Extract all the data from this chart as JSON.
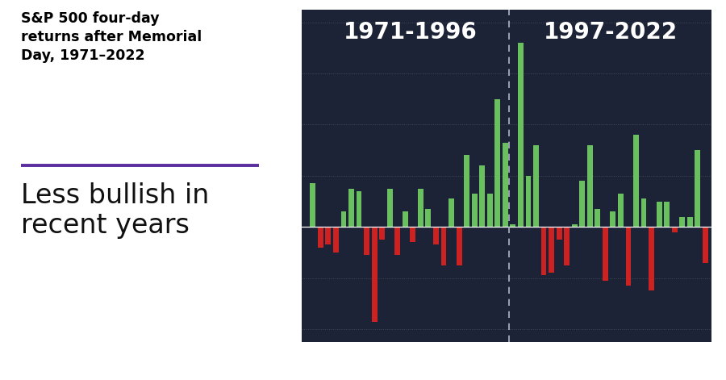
{
  "years": [
    1971,
    1972,
    1973,
    1974,
    1975,
    1976,
    1977,
    1978,
    1979,
    1980,
    1981,
    1982,
    1983,
    1984,
    1985,
    1986,
    1987,
    1988,
    1989,
    1990,
    1991,
    1992,
    1993,
    1994,
    1995,
    1996,
    1997,
    1998,
    1999,
    2000,
    2001,
    2002,
    2003,
    2004,
    2005,
    2006,
    2007,
    2008,
    2009,
    2010,
    2011,
    2012,
    2013,
    2014,
    2015,
    2016,
    2017,
    2018,
    2019,
    2020,
    2021,
    2022
  ],
  "returns": [
    1.7,
    -0.8,
    -0.7,
    -1.0,
    0.6,
    1.5,
    1.4,
    -1.1,
    -3.7,
    -0.5,
    1.5,
    -1.1,
    0.6,
    -0.6,
    1.5,
    0.7,
    -0.7,
    -1.5,
    1.1,
    -1.5,
    2.8,
    1.3,
    2.4,
    1.3,
    5.0,
    3.3,
    0.1,
    7.2,
    2.0,
    3.2,
    -1.9,
    -1.8,
    -0.5,
    -1.5,
    0.1,
    1.8,
    3.2,
    0.7,
    -2.1,
    0.6,
    1.3,
    -2.3,
    3.6,
    1.1,
    -2.5,
    1.0,
    1.0,
    -0.2,
    0.4,
    0.4,
    3.0,
    -1.4
  ],
  "bg_color": "#1c2336",
  "pos_color": "#6abf5e",
  "neg_color": "#cc2222",
  "grid_color": "#ffffff",
  "label1": "1971-1996",
  "label2": "1997-2022",
  "divider_year": 1996.5,
  "ylim": [
    -4.5,
    8.5
  ],
  "yticks": [
    -4,
    -2,
    0,
    2,
    4,
    6,
    8
  ],
  "xticks": [
    1971,
    1981,
    1991,
    2001,
    2011,
    2021
  ],
  "text_color": "#ffffff",
  "title_color": "#000000",
  "subtitle_color": "#111111",
  "accent_color": "#5b2d9e",
  "title": "S&P 500 four-day\nreturns after Memorial\nDay, 1971–2022",
  "subtitle": "Less bullish in\nrecent years",
  "title_fontsize": 12.5,
  "subtitle_fontsize": 24,
  "period_label_fontsize": 20,
  "tick_fontsize": 9.5
}
